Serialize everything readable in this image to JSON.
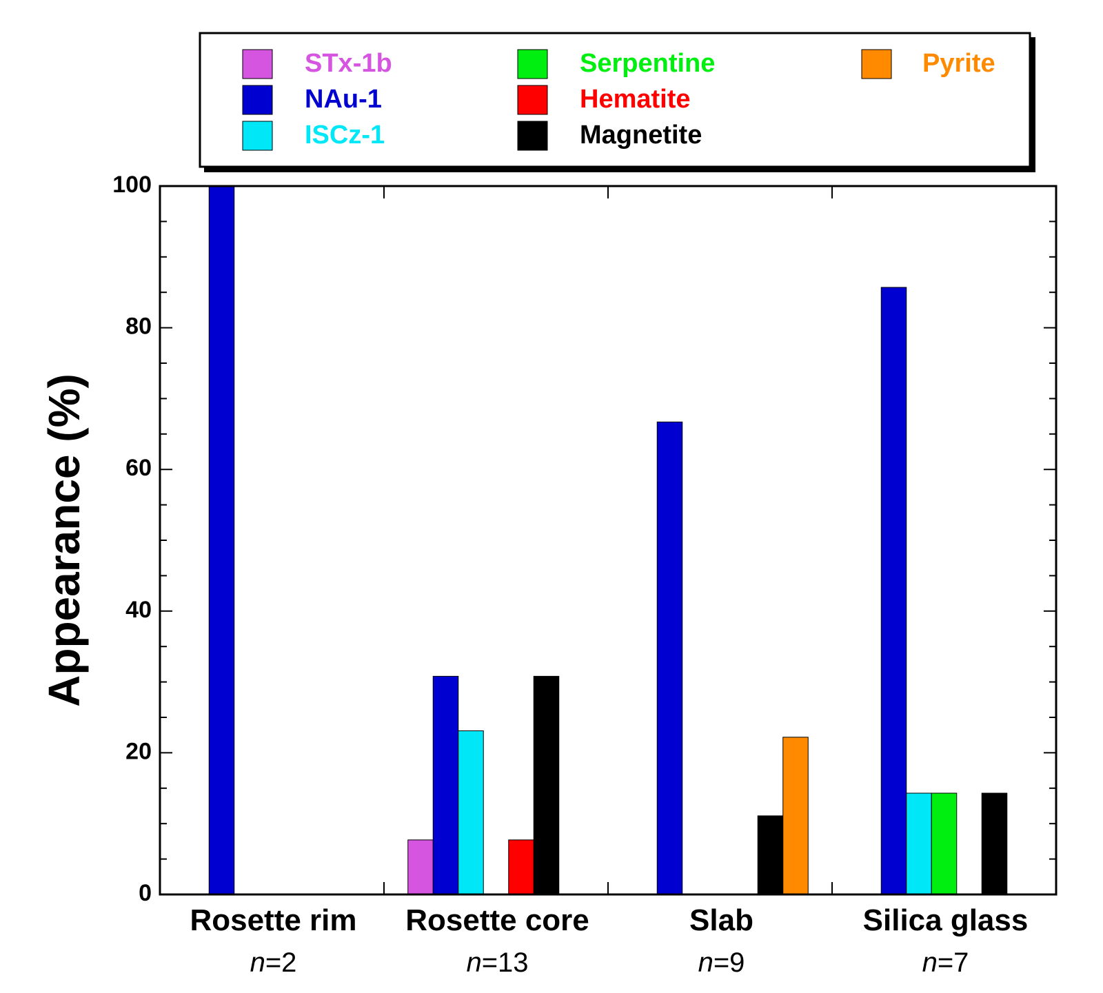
{
  "chart_data": {
    "type": "bar",
    "title": "",
    "xlabel": "",
    "ylabel": "Appearance (%)",
    "ylim": [
      0,
      100
    ],
    "yticks": [
      "0",
      "20",
      "40",
      "60",
      "80",
      "100"
    ],
    "grid": false,
    "legend_position": "top",
    "categories": [
      {
        "label": "Rosette rim",
        "n_prefix": "n",
        "n_value": "=2"
      },
      {
        "label": "Rosette core",
        "n_prefix": "n",
        "n_value": "=13"
      },
      {
        "label": "Slab",
        "n_prefix": "n",
        "n_value": "=9"
      },
      {
        "label": "Silica glass",
        "n_prefix": "n",
        "n_value": "=7"
      }
    ],
    "series": [
      {
        "name": "STx-1b",
        "color": "#d555e0",
        "values": [
          0,
          7.7,
          0,
          0
        ]
      },
      {
        "name": "NAu-1",
        "color": "#0000d0",
        "values": [
          100,
          30.8,
          66.7,
          85.7
        ]
      },
      {
        "name": "ISCz-1",
        "color": "#00e8f8",
        "values": [
          0,
          23.1,
          0,
          14.3
        ]
      },
      {
        "name": "Serpentine",
        "color": "#00ee10",
        "values": [
          0,
          0,
          0,
          14.3
        ]
      },
      {
        "name": "Hematite",
        "color": "#ff0000",
        "values": [
          0,
          7.7,
          0,
          0
        ]
      },
      {
        "name": "Magnetite",
        "color": "#000000",
        "values": [
          0,
          30.8,
          11.1,
          14.3
        ]
      },
      {
        "name": "Pyrite",
        "color": "#ff8a00",
        "values": [
          0,
          0,
          22.2,
          0
        ]
      }
    ]
  }
}
